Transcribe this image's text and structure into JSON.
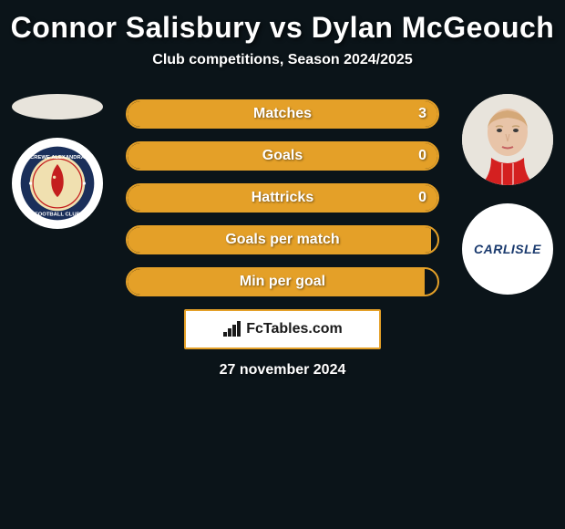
{
  "title": "Connor Salisbury vs Dylan McGeouch",
  "subtitle": "Club competitions, Season 2024/2025",
  "date": "27 november 2024",
  "branding": "FcTables.com",
  "chart": {
    "type": "infographic",
    "background_color": "#0b1419",
    "pill_border_color": "#e4a028",
    "pill_fill_left_color": "#c77e20",
    "pill_fill_right_color": "#e4a028",
    "text_color": "#ffffff",
    "title_fontsize": 32,
    "subtitle_fontsize": 16,
    "stat_label_fontsize": 16
  },
  "stats": [
    {
      "label": "Matches",
      "value": "3",
      "left_fill_pct": 0,
      "right_fill_pct": 100
    },
    {
      "label": "Goals",
      "value": "0",
      "left_fill_pct": 0,
      "right_fill_pct": 100
    },
    {
      "label": "Hattricks",
      "value": "0",
      "left_fill_pct": 0,
      "right_fill_pct": 100
    },
    {
      "label": "Goals per match",
      "value": "",
      "left_fill_pct": 0,
      "right_fill_pct": 98
    },
    {
      "label": "Min per goal",
      "value": "",
      "left_fill_pct": 0,
      "right_fill_pct": 96
    }
  ],
  "left_player": {
    "name": "Connor Salisbury",
    "club": "Crewe Alexandra",
    "club_badge_bg": "#ffffff",
    "club_badge_outer": "#1a2f5a",
    "club_badge_inner": "#f0e0b0",
    "club_badge_accent": "#c41e1e"
  },
  "right_player": {
    "name": "Dylan McGeouch",
    "club": "Carlisle",
    "club_text": "CARLISLE",
    "club_badge_bg": "#ffffff",
    "club_text_color": "#1a3a6e"
  }
}
